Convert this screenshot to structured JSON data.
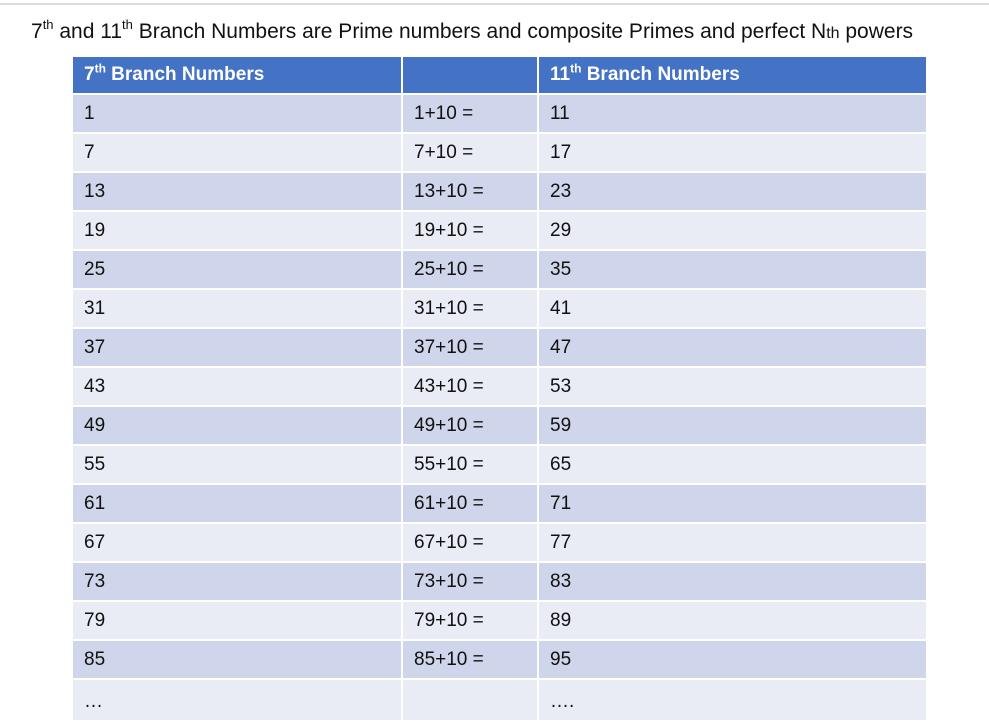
{
  "title": {
    "p1": "7",
    "s1": "th",
    "p2": " and 11",
    "s2": "th",
    "p3": " Branch Numbers are Prime numbers and composite Primes and perfect N",
    "small": "th",
    "p4": " powers"
  },
  "table": {
    "headers": [
      {
        "num": "7",
        "sup": "th",
        "text": " Branch Numbers"
      },
      {
        "text": ""
      },
      {
        "num": "11",
        "sup": "th",
        "text": " Branch Numbers"
      }
    ],
    "rows": [
      [
        "1",
        "1+10 =",
        "11"
      ],
      [
        "7",
        "7+10 =",
        "17"
      ],
      [
        "13",
        "13+10 =",
        "23"
      ],
      [
        "19",
        "19+10 =",
        "29"
      ],
      [
        "25",
        "25+10 =",
        "35"
      ],
      [
        "31",
        "31+10 =",
        "41"
      ],
      [
        "37",
        "37+10 =",
        "47"
      ],
      [
        "43",
        "43+10 =",
        "53"
      ],
      [
        "49",
        "49+10 =",
        "59"
      ],
      [
        "55",
        "55+10 =",
        "65"
      ],
      [
        "61",
        "61+10 =",
        "71"
      ],
      [
        "67",
        "67+10 =",
        "77"
      ],
      [
        "73",
        "73+10 =",
        "83"
      ],
      [
        "79",
        "79+10 =",
        "89"
      ],
      [
        "85",
        "85+10 =",
        "95"
      ],
      [
        "…",
        "",
        "…."
      ]
    ]
  }
}
